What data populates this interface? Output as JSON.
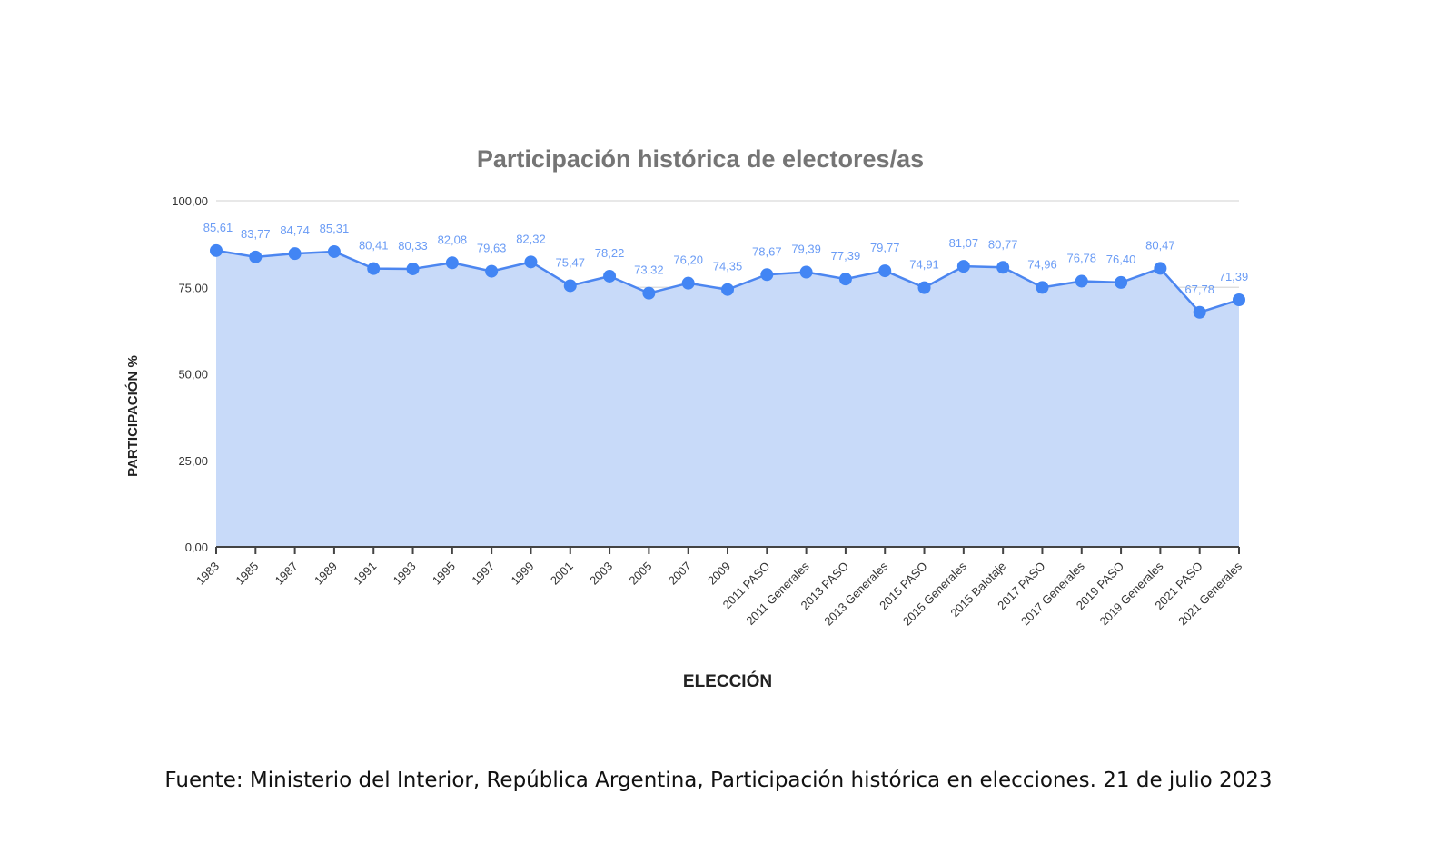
{
  "source_note": "Fuente: Ministerio del Interior, República Argentina, Participación histórica en elecciones. 21 de julio 2023",
  "chart_data": {
    "type": "area",
    "title": "Participación histórica de electores/as",
    "xlabel": "ELECCIÓN",
    "ylabel": "PARTICIPACIÓN %",
    "ylim": [
      0,
      100
    ],
    "yticks": [
      "0,00",
      "25,00",
      "50,00",
      "75,00",
      "100,00"
    ],
    "categories": [
      "1983",
      "1985",
      "1987",
      "1989",
      "1991",
      "1993",
      "1995",
      "1997",
      "1999",
      "2001",
      "2003",
      "2005",
      "2007",
      "2009",
      "2011 PASO",
      "2011 Generales",
      "2013 PASO",
      "2013 Generales",
      "2015 PASO",
      "2015 Generales",
      "2015 Balotaje",
      "2017 PASO",
      "2017 Generales",
      "2019 PASO",
      "2019 Generales",
      "2021 PASO",
      "2021 Generales"
    ],
    "values": [
      85.61,
      83.77,
      84.74,
      85.31,
      80.41,
      80.33,
      82.08,
      79.63,
      82.32,
      75.47,
      78.22,
      73.32,
      76.2,
      74.35,
      78.67,
      79.39,
      77.39,
      79.77,
      74.91,
      81.07,
      80.77,
      74.96,
      76.78,
      76.4,
      80.47,
      67.78,
      71.39
    ],
    "data_labels": [
      "85,61",
      "83,77",
      "84,74",
      "85,31",
      "80,41",
      "80,33",
      "82,08",
      "79,63",
      "82,32",
      "75,47",
      "78,22",
      "73,32",
      "76,20",
      "74,35",
      "78,67",
      "79,39",
      "77,39",
      "79,77",
      "74,91",
      "81,07",
      "80,77",
      "74,96",
      "76,78",
      "76,40",
      "80,47",
      "67,78",
      "71,39"
    ],
    "grid": true,
    "legend": "none",
    "colors": {
      "line": "#4c86f0",
      "area": "#c8daf9",
      "marker": "#4285f4",
      "label": "#6b9cf5",
      "grid": "#d9d9d9",
      "title": "#757575"
    }
  }
}
